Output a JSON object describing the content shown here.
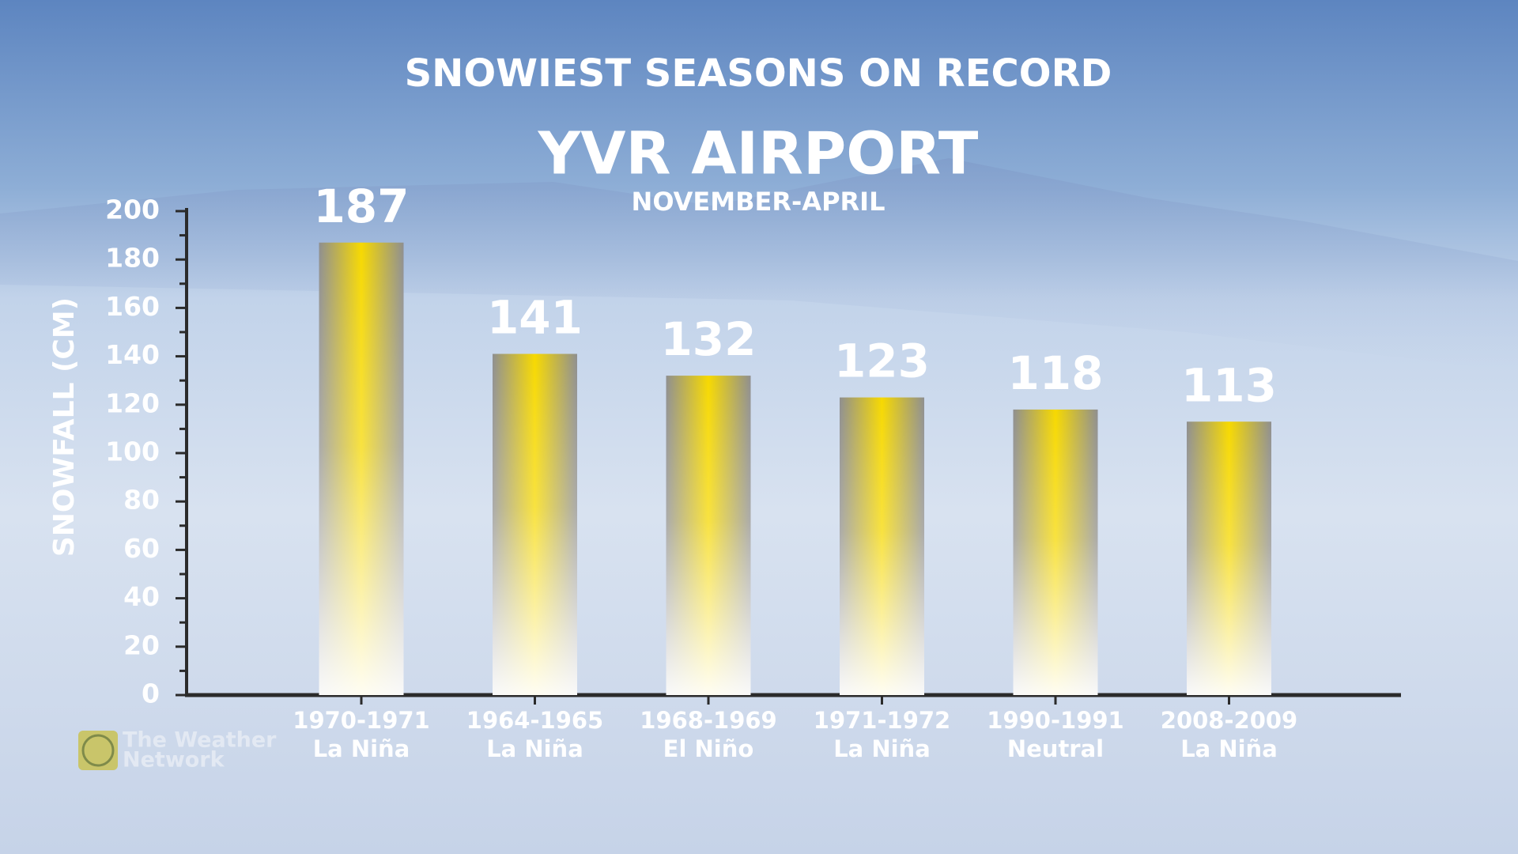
{
  "chart_data": {
    "type": "bar",
    "title": "SNOWIEST SEASONS ON RECORD",
    "subtitle": "YVR AIRPORT",
    "period": "NOVEMBER-APRIL",
    "y_label": "SNOWFALL (CM)",
    "categories": [
      "1970-1971",
      "1964-1965",
      "1968-1969",
      "1971-1972",
      "1990-1991",
      "2008-2009"
    ],
    "enso_phase": [
      "La Niña",
      "La Niña",
      "El Niño",
      "La Niña",
      "Neutral",
      "La Niña"
    ],
    "values": [
      187,
      141,
      132,
      123,
      118,
      113
    ],
    "color": "#f7d900",
    "ylim": [
      0,
      200
    ],
    "yticks": [
      0,
      20,
      40,
      60,
      80,
      100,
      120,
      140,
      160,
      180,
      200
    ],
    "minor_yticks": [
      10,
      30,
      50,
      70,
      90,
      110,
      130,
      150,
      170,
      190
    ],
    "grid": false
  },
  "brand": [
    "The Weather",
    "Network"
  ]
}
